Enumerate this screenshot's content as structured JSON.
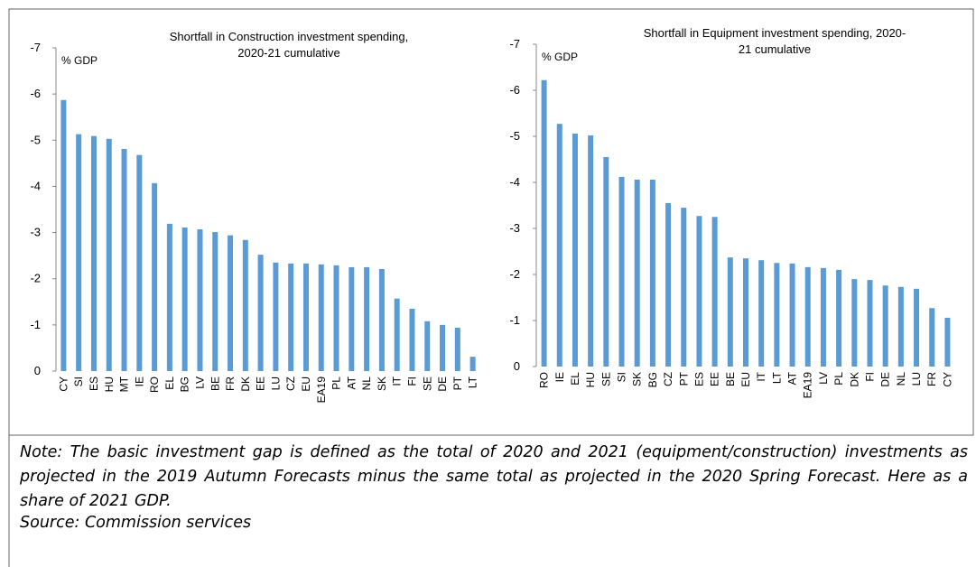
{
  "chart_data": [
    {
      "type": "bar",
      "title": [
        "Shortfall  in Construction investment spending,",
        "2020-21  cumulative"
      ],
      "y_label": "% GDP",
      "categories": [
        "CY",
        "SI",
        "ES",
        "HU",
        "MT",
        "IE",
        "RO",
        "EL",
        "BG",
        "LV",
        "BE",
        "FR",
        "DK",
        "EE",
        "LU",
        "CZ",
        "EU",
        "EA19",
        "PL",
        "AT",
        "NL",
        "SK",
        "IT",
        "FI",
        "SE",
        "DE",
        "PT",
        "LT"
      ],
      "values": [
        -5.87,
        -5.13,
        -5.09,
        -5.03,
        -4.81,
        -4.68,
        -4.07,
        -3.19,
        -3.11,
        -3.07,
        -3.01,
        -2.94,
        -2.84,
        -2.52,
        -2.35,
        -2.33,
        -2.33,
        -2.31,
        -2.29,
        -2.25,
        -2.25,
        -2.21,
        -1.57,
        -1.35,
        -1.08,
        -1.0,
        -0.94,
        -0.31
      ],
      "color": "#5b9bd5",
      "ylim": [
        0,
        -7
      ],
      "yticks": [
        0,
        -1,
        -2,
        -3,
        -4,
        -5,
        -6,
        -7
      ]
    },
    {
      "type": "bar",
      "title": [
        "Shortfall in Equipment investment spending, 2020-",
        "21 cumulative"
      ],
      "y_label": "% GDP",
      "categories": [
        "RO",
        "IE",
        "EL",
        "HU",
        "SE",
        "SI",
        "SK",
        "BG",
        "CZ",
        "PT",
        "ES",
        "EE",
        "BE",
        "EU",
        "IT",
        "LT",
        "AT",
        "EA19",
        "LV",
        "PL",
        "DK",
        "FI",
        "DE",
        "NL",
        "LU",
        "FR",
        "CY"
      ],
      "values": [
        -6.22,
        -5.27,
        -5.06,
        -5.02,
        -4.55,
        -4.12,
        -4.06,
        -4.06,
        -3.55,
        -3.45,
        -3.27,
        -3.25,
        -2.37,
        -2.35,
        -2.31,
        -2.25,
        -2.24,
        -2.16,
        -2.14,
        -2.1,
        -1.9,
        -1.88,
        -1.76,
        -1.73,
        -1.69,
        -1.27,
        -1.06
      ],
      "color": "#5b9bd5",
      "ylim": [
        0,
        -7
      ],
      "yticks": [
        0,
        -1,
        -2,
        -3,
        -4,
        -5,
        -6,
        -7
      ]
    }
  ],
  "note": "Note: The basic investment gap is defined as the total of 2020 and 2021 (equipment/construction) investments as projected in the 2019 Autumn Forecasts minus the same total as projected in the 2020 Spring Forecast. Here as a share of 2021 GDP.",
  "source": "Source: Commission services"
}
